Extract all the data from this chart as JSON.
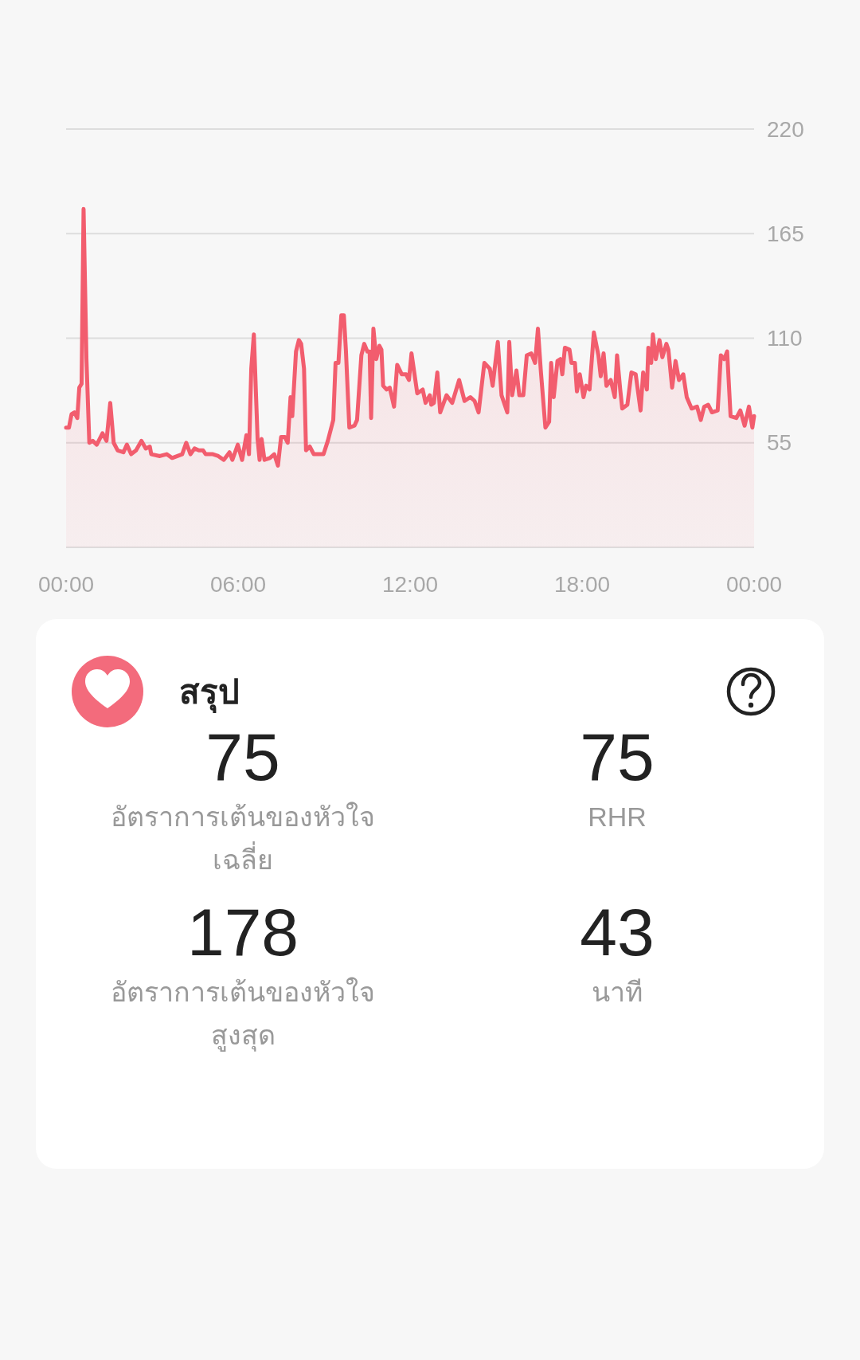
{
  "chart_data": [
    {
      "type": "area",
      "x": [
        0,
        0.1,
        0.19,
        0.29,
        0.39,
        0.46,
        0.54,
        0.61,
        0.71,
        0.81,
        0.93,
        1.07,
        1.27,
        1.41,
        1.54,
        1.66,
        1.8,
        2.0,
        2.12,
        2.27,
        2.44,
        2.63,
        2.78,
        2.92,
        2.97,
        3.27,
        3.51,
        3.7,
        4.05,
        4.19,
        4.34,
        4.48,
        4.63,
        4.78,
        4.87,
        5.12,
        5.31,
        5.5,
        5.7,
        5.8,
        5.99,
        6.14,
        6.29,
        6.38,
        6.46,
        6.55,
        6.68,
        6.75,
        6.82,
        6.92,
        7.11,
        7.26,
        7.39,
        7.5,
        7.63,
        7.73,
        7.83,
        7.89,
        8.02,
        8.12,
        8.2,
        8.3,
        8.37,
        8.5,
        8.64,
        8.89,
        8.98,
        9.13,
        9.32,
        9.4,
        9.5,
        9.6,
        9.69,
        9.76,
        9.88,
        10.06,
        10.15,
        10.3,
        10.4,
        10.51,
        10.59,
        10.64,
        10.72,
        10.82,
        10.93,
        11.0,
        11.06,
        11.18,
        11.29,
        11.44,
        11.55,
        11.71,
        11.86,
        11.96,
        12.05,
        12.25,
        12.44,
        12.54,
        12.69,
        12.74,
        12.83,
        12.95,
        13.05,
        13.27,
        13.47,
        13.71,
        13.9,
        14.1,
        14.25,
        14.39,
        14.59,
        14.78,
        14.88,
        15.06,
        15.19,
        15.39,
        15.46,
        15.56,
        15.71,
        15.81,
        15.95,
        16.07,
        16.23,
        16.36,
        16.46,
        16.56,
        16.72,
        16.85,
        16.92,
        17.01,
        17.14,
        17.24,
        17.31,
        17.4,
        17.56,
        17.63,
        17.75,
        17.82,
        17.92,
        18.05,
        18.14,
        18.26,
        18.41,
        18.57,
        18.65,
        18.75,
        18.85,
        19.0,
        19.14,
        19.22,
        19.33,
        19.4,
        19.58,
        19.72,
        19.87,
        20.04,
        20.13,
        20.26,
        20.31,
        20.41,
        20.47,
        20.57,
        20.7,
        20.8,
        20.94,
        21.01,
        21.14,
        21.26,
        21.38,
        21.53,
        21.65,
        21.82,
        22.01,
        22.14,
        22.26,
        22.4,
        22.53,
        22.73,
        22.84,
        22.96,
        23.06,
        23.18,
        23.38,
        23.52,
        23.67,
        23.82,
        23.94,
        24.0
      ],
      "series": [
        {
          "color": "#f25d6e",
          "values": [
            63,
            63,
            70,
            71,
            68,
            84,
            86,
            178,
            99,
            55,
            56,
            54,
            60,
            56,
            76,
            55,
            51,
            50,
            54,
            49,
            51,
            56,
            52,
            53,
            49,
            48,
            49,
            47,
            49,
            55,
            49,
            52,
            51,
            51,
            49,
            49,
            48,
            46,
            50,
            46,
            54,
            46,
            59,
            49,
            94,
            112,
            57,
            46,
            57,
            46,
            47,
            49,
            43,
            58,
            58,
            55,
            79,
            69,
            103,
            109,
            107,
            94,
            51,
            53,
            49,
            49,
            49,
            56,
            67,
            97,
            97,
            122,
            122,
            104,
            63,
            64,
            67,
            101,
            107,
            103,
            103,
            68,
            115,
            99,
            106,
            104,
            85,
            83,
            84,
            74,
            96,
            91,
            91,
            88,
            102,
            81,
            83,
            76,
            80,
            75,
            76,
            92,
            71,
            80,
            76,
            88,
            77,
            79,
            77,
            71,
            97,
            94,
            85,
            108,
            80,
            71,
            108,
            80,
            93,
            80,
            80,
            101,
            102,
            97,
            115,
            93,
            63,
            66,
            97,
            79,
            98,
            99,
            91,
            105,
            104,
            97,
            97,
            82,
            91,
            79,
            85,
            83,
            113,
            101,
            90,
            102,
            85,
            88,
            79,
            101,
            83,
            73,
            75,
            92,
            91,
            72,
            92,
            83,
            105,
            97,
            112,
            99,
            109,
            100,
            107,
            104,
            84,
            98,
            88,
            91,
            79,
            73,
            74,
            67,
            74,
            75,
            71,
            72,
            101,
            99,
            103,
            69,
            68,
            72,
            64,
            74,
            63,
            69
          ]
        }
      ],
      "xlim": [
        0,
        24
      ],
      "xticks": [
        {
          "value": 0,
          "label": "00:00"
        },
        {
          "value": 6,
          "label": "06:00"
        },
        {
          "value": 12,
          "label": "12:00"
        },
        {
          "value": 18,
          "label": "18:00"
        },
        {
          "value": 24,
          "label": "00:00"
        }
      ],
      "ylim": [
        0,
        220
      ],
      "yticks": [
        {
          "value": 0,
          "label": null
        },
        55,
        110,
        165,
        220
      ],
      "grid": "y"
    },
    {
      "type": "other",
      "title": "สรุป",
      "categories": [
        "อัตราการเต้นของหัวใจเฉลี่ย",
        "RHR",
        "อัตราการเต้นของหัวใจสูงสุด",
        "นาที"
      ],
      "values": [
        75,
        75,
        178,
        43
      ],
      "data_labels": true
    }
  ]
}
